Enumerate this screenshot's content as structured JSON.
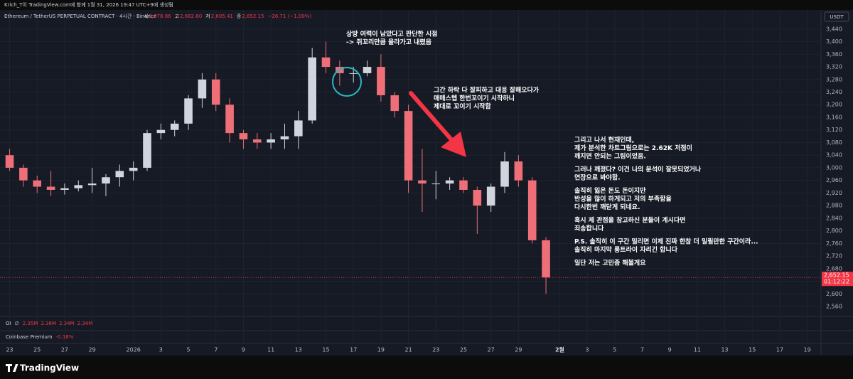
{
  "header": {
    "credit": "Krich_T이 TradingView.com에 함께 1월 31, 2026 19:47 UTC+9에 생성됨"
  },
  "chart_data": {
    "type": "candlestick",
    "title": "Ethereum / TetherUS PERPETUAL CONTRACT · 4시간 · Binance",
    "ohlc_legend": [
      {
        "label": "시",
        "value": "2,678.86"
      },
      {
        "label": "고",
        "value": "2,682.60"
      },
      {
        "label": "저",
        "value": "2,605.41"
      },
      {
        "label": "종",
        "value": "2,652.15"
      }
    ],
    "change": "−26.71 (−1.00%)",
    "currency": "USDT",
    "x": [
      0,
      1,
      2,
      3,
      4,
      5,
      6,
      7,
      8,
      9,
      10,
      11,
      12,
      13,
      14,
      15,
      16,
      17,
      18,
      19,
      20,
      21,
      22,
      23,
      24,
      25,
      26,
      27,
      28,
      29,
      30,
      31,
      32,
      33,
      34,
      35,
      36,
      37,
      38,
      39
    ],
    "open": [
      3040,
      3000,
      2960,
      2940,
      2930,
      2935,
      2945,
      2950,
      2970,
      2990,
      3000,
      3110,
      3120,
      3140,
      3220,
      3280,
      3200,
      3110,
      3090,
      3080,
      3090,
      3100,
      3150,
      3350,
      3320,
      3300,
      3300,
      3320,
      3230,
      3180,
      2960,
      2950,
      2950,
      2960,
      2930,
      2880,
      2940,
      3020,
      2960,
      2770
    ],
    "high": [
      3060,
      3010,
      2975,
      2990,
      2950,
      2960,
      3000,
      2980,
      3010,
      3020,
      3120,
      3140,
      3150,
      3230,
      3300,
      3300,
      3220,
      3120,
      3110,
      3110,
      3140,
      3180,
      3380,
      3400,
      3340,
      3320,
      3340,
      3360,
      3240,
      3200,
      3060,
      2990,
      2970,
      2970,
      2940,
      2950,
      3050,
      3040,
      2970,
      2780
    ],
    "low": [
      2990,
      2940,
      2920,
      2910,
      2915,
      2925,
      2920,
      2910,
      2940,
      2960,
      2990,
      3090,
      3100,
      3120,
      3190,
      3180,
      3080,
      3060,
      3060,
      3060,
      3060,
      3060,
      3140,
      3300,
      3260,
      3270,
      3290,
      3210,
      3160,
      2920,
      2860,
      2900,
      2930,
      2920,
      2790,
      2860,
      2920,
      2940,
      2760,
      2600
    ],
    "close": [
      3000,
      2960,
      2940,
      2930,
      2935,
      2945,
      2950,
      2970,
      2990,
      3000,
      3110,
      3120,
      3140,
      3220,
      3280,
      3200,
      3110,
      3090,
      3080,
      3090,
      3100,
      3150,
      3350,
      3320,
      3300,
      3300,
      3320,
      3230,
      3180,
      2960,
      2950,
      2950,
      2960,
      2930,
      2880,
      2940,
      3020,
      2960,
      2770,
      2652.15
    ],
    "up_color": "#d1d4dc",
    "down_color": "#ef6f78",
    "xlim": [
      -0.7,
      59
    ],
    "xticks": [
      {
        "value": 0,
        "label": "23"
      },
      {
        "value": 2,
        "label": "25"
      },
      {
        "value": 4,
        "label": "27"
      },
      {
        "value": 6,
        "label": "29"
      },
      {
        "value": 9,
        "label": "2026"
      },
      {
        "value": 11,
        "label": "3"
      },
      {
        "value": 13,
        "label": "5"
      },
      {
        "value": 15,
        "label": "7"
      },
      {
        "value": 17,
        "label": "9"
      },
      {
        "value": 19,
        "label": "11"
      },
      {
        "value": 21,
        "label": "13"
      },
      {
        "value": 23,
        "label": "15"
      },
      {
        "value": 25,
        "label": "17"
      },
      {
        "value": 27,
        "label": "19"
      },
      {
        "value": 29,
        "label": "21"
      },
      {
        "value": 31,
        "label": "23"
      },
      {
        "value": 33,
        "label": "25"
      },
      {
        "value": 35,
        "label": "27"
      },
      {
        "value": 37,
        "label": "29"
      },
      {
        "value": 40,
        "label": "2월"
      },
      {
        "value": 42,
        "label": "3"
      },
      {
        "value": 44,
        "label": "5"
      },
      {
        "value": 46,
        "label": "7"
      },
      {
        "value": 48,
        "label": "9"
      },
      {
        "value": 50,
        "label": "11"
      },
      {
        "value": 52,
        "label": "13"
      },
      {
        "value": 54,
        "label": "15"
      },
      {
        "value": 56,
        "label": "17"
      },
      {
        "value": 58,
        "label": "19"
      }
    ],
    "ylim": [
      2533,
      3496
    ],
    "yticks": [
      {
        "value": 3440,
        "label": "3,440"
      },
      {
        "value": 3400,
        "label": "3,400"
      },
      {
        "value": 3360,
        "label": "3,360"
      },
      {
        "value": 3320,
        "label": "3,320"
      },
      {
        "value": 3280,
        "label": "3,280"
      },
      {
        "value": 3240,
        "label": "3,240"
      },
      {
        "value": 3200,
        "label": "3,200"
      },
      {
        "value": 3160,
        "label": "3,160"
      },
      {
        "value": 3120,
        "label": "3,120"
      },
      {
        "value": 3080,
        "label": "3,080"
      },
      {
        "value": 3040,
        "label": "3,040"
      },
      {
        "value": 3000,
        "label": "3,000"
      },
      {
        "value": 2960,
        "label": "2,960"
      },
      {
        "value": 2920,
        "label": "2,920"
      },
      {
        "value": 2880,
        "label": "2,880"
      },
      {
        "value": 2840,
        "label": "2,840"
      },
      {
        "value": 2800,
        "label": "2,800"
      },
      {
        "value": 2760,
        "label": "2,760"
      },
      {
        "value": 2720,
        "label": "2,720"
      },
      {
        "value": 2680,
        "label": "2,680"
      },
      {
        "value": 2640,
        "label": "2,640"
      },
      {
        "value": 2600,
        "label": "2,600"
      },
      {
        "value": 2560,
        "label": "2,560"
      }
    ],
    "grid": true,
    "last_price": {
      "value": 2652.15,
      "label": "2,652.15"
    },
    "countdown": "01:12:22",
    "annotations": [
      {
        "paragraphs": [
          [
            "상방 여력이 남았다고 판단한 시점",
            "-> 쥐꼬리만큼 올라가고 내렸음"
          ]
        ]
      },
      {
        "paragraphs": [
          [
            "그간 하락 다 잘피하고 대응 잘해오다가",
            "매매스텝 한번꼬이기 시작하니",
            "제대로 꼬이기 시작함"
          ]
        ]
      },
      {
        "paragraphs": [
          [
            "그리고 나서 현재인데,",
            "제가 분석한 차트그림으로는 2.62K 저점이",
            "깨지면 안되는 그림이었음."
          ],
          [
            "그러나 깨졌다? 이건 나의 분석이 잘못되었거나",
            "연장으로 봐야함."
          ],
          [
            "솔직히 잃은 돈도 돈이지만",
            "반성을 많이 하게되고 저의 부족함을",
            "다시한번 깨닫게 되네요."
          ],
          [
            "혹시 제 관점을 참고하신 분들이 계시다면",
            "죄송합니다"
          ],
          [
            "P.S. 솔직히 이 구간 밀리면 이제 진짜 한참 더 밀릴만한 구간이라...",
            "솔직히 마지막 롱트라이 자리긴 합니다"
          ],
          [
            "일단 저는 고민좀 해볼게요"
          ]
        ]
      }
    ],
    "indicators": [
      {
        "name": "OI",
        "icon": "∅",
        "values": [
          "2.35M",
          "2.36M",
          "2.34M",
          "2.34M"
        ]
      },
      {
        "name": "Coinbase Premium",
        "values": [
          "-0.18%"
        ]
      }
    ]
  },
  "footer": {
    "brand": "TradingView"
  }
}
